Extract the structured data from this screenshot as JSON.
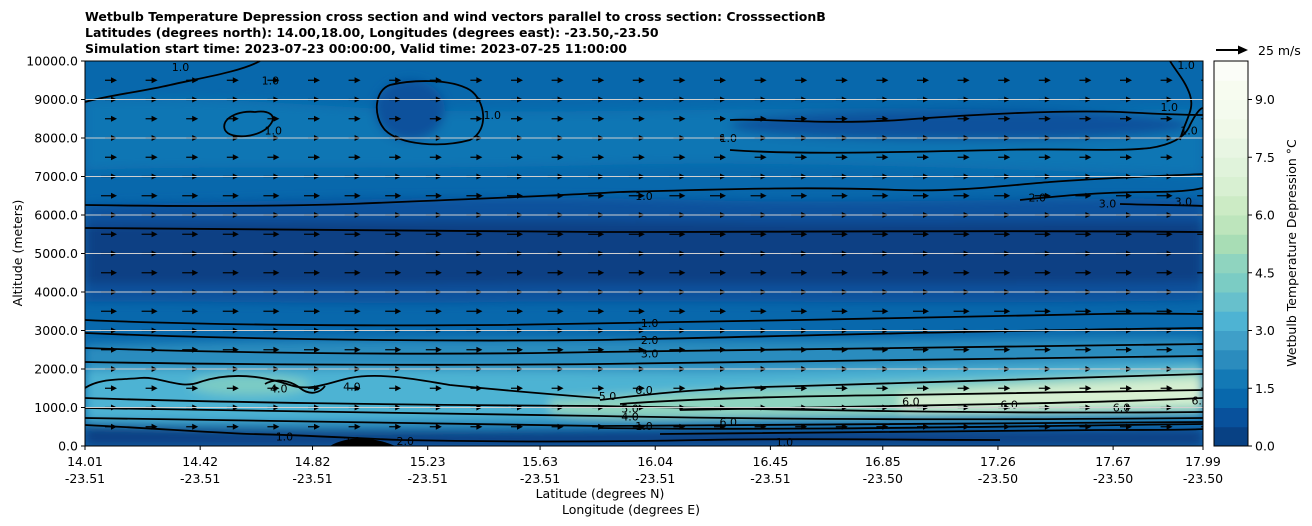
{
  "chart_data": {
    "type": "heatmap",
    "title_lines": [
      "Wetbulb Temperature Depression cross section and wind vectors parallel to cross section: CrosssectionB",
      "Latitudes (degrees north): 14.00,18.00, Longitudes (degrees east): -23.50,-23.50",
      "Simulation start time: 2023-07-23 00:00:00, Valid time: 2023-07-25 11:00:00"
    ],
    "xlabel_lat": "Latitude (degrees N)",
    "xlabel_lon": "Longitude (degrees E)",
    "ylabel": "Altitude (meters)",
    "x_ticks": [
      {
        "lat": "14.01",
        "lon": "-23.51",
        "pos": 14.01
      },
      {
        "lat": "14.42",
        "lon": "-23.51",
        "pos": 14.42
      },
      {
        "lat": "14.82",
        "lon": "-23.51",
        "pos": 14.82
      },
      {
        "lat": "15.23",
        "lon": "-23.51",
        "pos": 15.23
      },
      {
        "lat": "15.63",
        "lon": "-23.51",
        "pos": 15.63
      },
      {
        "lat": "16.04",
        "lon": "-23.51",
        "pos": 16.04
      },
      {
        "lat": "16.45",
        "lon": "-23.51",
        "pos": 16.45
      },
      {
        "lat": "16.85",
        "lon": "-23.50",
        "pos": 16.85
      },
      {
        "lat": "17.26",
        "lon": "-23.50",
        "pos": 17.26
      },
      {
        "lat": "17.67",
        "lon": "-23.50",
        "pos": 17.67
      },
      {
        "lat": "17.99",
        "lon": "-23.50",
        "pos": 17.99
      }
    ],
    "xlim": [
      14.01,
      17.99
    ],
    "y_ticks": [
      "0.0",
      "1000.0",
      "2000.0",
      "3000.0",
      "4000.0",
      "5000.0",
      "6000.0",
      "7000.0",
      "8000.0",
      "9000.0",
      "10000.0"
    ],
    "ylim": [
      0,
      10000
    ],
    "grid": "horizontal",
    "colorbar": {
      "label": "Wetbulb Temperature Depression °C",
      "range": [
        0,
        10
      ],
      "ticks": [
        "0.0",
        "1.5",
        "3.0",
        "4.5",
        "6.0",
        "7.5",
        "9.0"
      ],
      "tick_values": [
        0,
        1.5,
        3.0,
        4.5,
        6.0,
        7.5,
        9.0
      ],
      "levels": 20,
      "colors": [
        "#084184",
        "#08519c",
        "#0868ac",
        "#1379b5",
        "#2b8cbe",
        "#3f9fc8",
        "#4eb3d3",
        "#67c0cc",
        "#7bccc4",
        "#8fd4bf",
        "#a8ddb5",
        "#bde5bc",
        "#ccebc5",
        "#d8f0d2",
        "#e0f3db",
        "#e8f6e3",
        "#f0f9e8",
        "#f4fbee",
        "#f7fcf0",
        "#fbfdf8"
      ]
    },
    "quiver_key": {
      "label": "25 m/s"
    },
    "contour_labels": [
      {
        "text": "1.0",
        "x": 14.35,
        "y": 9850
      },
      {
        "text": "1.0",
        "x": 14.67,
        "y": 9500
      },
      {
        "text": "1.0",
        "x": 14.68,
        "y": 8200
      },
      {
        "text": "1.0",
        "x": 15.46,
        "y": 8600
      },
      {
        "text": "1.0",
        "x": 16.3,
        "y": 8000
      },
      {
        "text": "1.0",
        "x": 17.87,
        "y": 8800
      },
      {
        "text": "1.0",
        "x": 17.94,
        "y": 8200
      },
      {
        "text": "1.0",
        "x": 17.93,
        "y": 9900
      },
      {
        "text": "1.0",
        "x": 16.0,
        "y": 6500
      },
      {
        "text": "2.0",
        "x": 17.4,
        "y": 6450
      },
      {
        "text": "3.0",
        "x": 17.65,
        "y": 6300
      },
      {
        "text": "3.0",
        "x": 17.92,
        "y": 6350
      },
      {
        "text": "1.0",
        "x": 16.02,
        "y": 3200
      },
      {
        "text": "2.0",
        "x": 16.02,
        "y": 2750
      },
      {
        "text": "3.0",
        "x": 16.02,
        "y": 2400
      },
      {
        "text": "4.0",
        "x": 14.7,
        "y": 1500
      },
      {
        "text": "4.0",
        "x": 14.96,
        "y": 1550
      },
      {
        "text": "5.0",
        "x": 15.87,
        "y": 1300
      },
      {
        "text": "6.0",
        "x": 16.0,
        "y": 1450
      },
      {
        "text": "5.0",
        "x": 15.95,
        "y": 980
      },
      {
        "text": "4.0",
        "x": 15.95,
        "y": 770
      },
      {
        "text": "1.0",
        "x": 16.0,
        "y": 520
      },
      {
        "text": "6.0",
        "x": 16.3,
        "y": 620
      },
      {
        "text": "6.0",
        "x": 16.95,
        "y": 1150
      },
      {
        "text": "6.0",
        "x": 17.3,
        "y": 1080
      },
      {
        "text": "6.0",
        "x": 17.7,
        "y": 1000
      },
      {
        "text": "6.0",
        "x": 17.98,
        "y": 1180
      },
      {
        "text": "1.0",
        "x": 16.5,
        "y": 100
      },
      {
        "text": "1.0",
        "x": 14.72,
        "y": 250
      },
      {
        "text": "2.0",
        "x": 14.96,
        "y": 130
      },
      {
        "text": "2.0",
        "x": 15.15,
        "y": 130
      }
    ]
  }
}
